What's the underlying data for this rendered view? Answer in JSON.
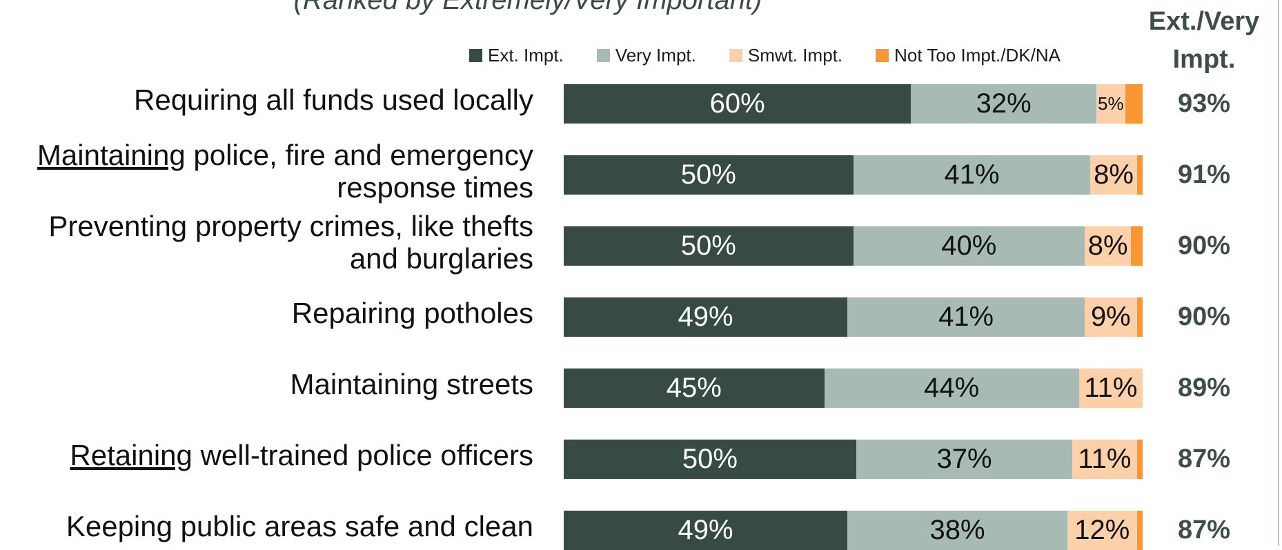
{
  "subtitle": "(Ranked by Extremely/Very Important)",
  "total_header": {
    "line1": "Ext./Very",
    "line2": "Impt."
  },
  "colors": {
    "ext": "#374a44",
    "very": "#a7bbb4",
    "smwt": "#fcd0a8",
    "not": "#f79633",
    "total_text": "#3e4e47"
  },
  "chart_data": {
    "type": "bar",
    "orientation": "horizontal",
    "stacked": true,
    "legend": [
      "Ext. Impt.",
      "Very Impt.",
      "Smwt. Impt.",
      "Not Too Impt./DK/NA"
    ],
    "legend_position": "top",
    "rows": [
      {
        "pre": "",
        "underline": "",
        "post": "Requiring all funds used locally",
        "values": [
          60,
          32,
          5,
          3
        ],
        "labels": [
          "60%",
          "32%",
          "5%",
          ""
        ],
        "total": "93%"
      },
      {
        "pre": "",
        "underline": "Maintaining",
        "post": " police, fire and emergency response times",
        "values": [
          50,
          41,
          8,
          1
        ],
        "labels": [
          "50%",
          "41%",
          "8%",
          ""
        ],
        "total": "91%"
      },
      {
        "pre": "",
        "underline": "",
        "post": "Preventing property crimes, like thefts and burglaries",
        "values": [
          50,
          40,
          8,
          2
        ],
        "labels": [
          "50%",
          "40%",
          "8%",
          ""
        ],
        "total": "90%"
      },
      {
        "pre": "",
        "underline": "",
        "post": "Repairing potholes",
        "values": [
          49,
          41,
          9,
          1
        ],
        "labels": [
          "49%",
          "41%",
          "9%",
          ""
        ],
        "total": "90%"
      },
      {
        "pre": "",
        "underline": "",
        "post": "Maintaining streets",
        "values": [
          45,
          44,
          11,
          0
        ],
        "labels": [
          "45%",
          "44%",
          "11%",
          ""
        ],
        "total": "89%"
      },
      {
        "pre": "",
        "underline": "Retaining",
        "post": " well-trained police officers",
        "values": [
          50,
          37,
          11,
          1
        ],
        "labels": [
          "50%",
          "37%",
          "11%",
          ""
        ],
        "total": "87%"
      },
      {
        "pre": "",
        "underline": "",
        "post": "Keeping public areas safe and clean",
        "values": [
          49,
          38,
          12,
          1
        ],
        "labels": [
          "49%",
          "38%",
          "12%",
          ""
        ],
        "total": "87%"
      }
    ]
  }
}
